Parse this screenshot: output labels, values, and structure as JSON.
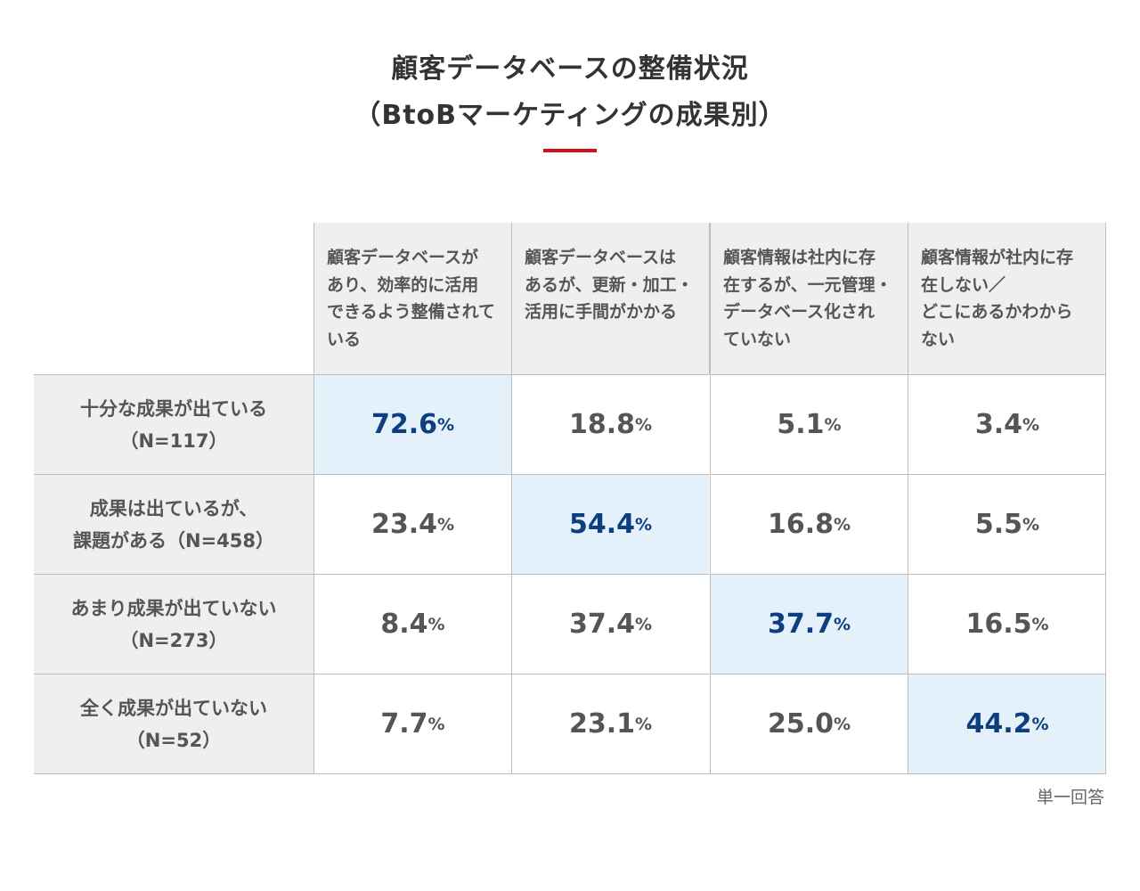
{
  "title": {
    "line1": "顧客データベースの整備状況",
    "line2": "（BtoBマーケティングの成果別）"
  },
  "colors": {
    "accent": "#d0111b",
    "highlight_bg": "#e4f1fa",
    "highlight_text": "#0d3f80",
    "header_bg": "#efefef"
  },
  "chart_data": {
    "type": "table",
    "unit": "%",
    "columns": [
      [
        "顧客データベースが",
        "あり、効率的に活用",
        "できるよう整備されて",
        "いる"
      ],
      [
        "顧客データベースは",
        "あるが、更新・加工・",
        "活用に手間がかかる"
      ],
      [
        "顧客情報は社内に存",
        "在するが、一元管理・",
        "データベース化され",
        "ていない"
      ],
      [
        "顧客情報が社内に存",
        "在しない／",
        "どこにあるかわから",
        "ない"
      ]
    ],
    "rows": [
      {
        "label": [
          "十分な成果が出ている",
          "（N=117）"
        ],
        "values": [
          "72.6",
          "18.8",
          "5.1",
          "3.4"
        ],
        "highlight": 0
      },
      {
        "label": [
          "成果は出ているが、",
          "課題がある（N=458）"
        ],
        "values": [
          "23.4",
          "54.4",
          "16.8",
          "5.5"
        ],
        "highlight": 1
      },
      {
        "label": [
          "あまり成果が出ていない",
          "（N=273）"
        ],
        "values": [
          "8.4",
          "37.4",
          "37.7",
          "16.5"
        ],
        "highlight": 2
      },
      {
        "label": [
          "全く成果が出ていない",
          "（N=52）"
        ],
        "values": [
          "7.7",
          "23.1",
          "25.0",
          "44.2"
        ],
        "highlight": 3
      }
    ]
  },
  "note": "単一回答"
}
